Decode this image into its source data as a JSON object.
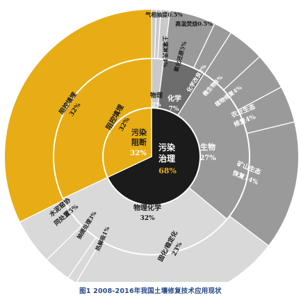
{
  "chart_data": {
    "type": "sunburst",
    "title": "",
    "caption": "图1 2008-2016年我国土壤修复技术应用现状",
    "colors": {
      "black": "#1b1b1b",
      "gold": "#e8ad14",
      "gray_dark": "#6d6d6d",
      "gray_mid": "#9a9a9a",
      "gray_light": "#c9c9c9",
      "gray_pale": "#d9d9d9"
    },
    "rings": {
      "inner": [
        {
          "name": "污染治理",
          "value": 68
        },
        {
          "name": "污染阻断",
          "value": 32
        }
      ],
      "middle": [
        {
          "name": "物理",
          "value": 2
        },
        {
          "name": "化学",
          "value": 7
        },
        {
          "name": "生物",
          "value": 27
        },
        {
          "name": "物理化学",
          "value": 32
        },
        {
          "name": "阻控填埋",
          "value": 32
        }
      ],
      "outer": [
        {
          "name": "气相抽提",
          "value": 0.5
        },
        {
          "name": "高温焚烧",
          "value": 0.5
        },
        {
          "name": "土壤淋洗",
          "value": 1
        },
        {
          "name": "氧化还原",
          "value": 5
        },
        {
          "name": "化学改良",
          "value": 2
        },
        {
          "name": "微生物",
          "value": 4
        },
        {
          "name": "植物修复",
          "value": 4
        },
        {
          "name": "农业生态修复",
          "value": 4
        },
        {
          "name": "矿山生态恢复",
          "value": 14
        },
        {
          "name": "固化/稳定化",
          "value": 23
        },
        {
          "name": "热解吸",
          "value": 1
        },
        {
          "name": "抽提处理",
          "value": 3
        },
        {
          "name": "水泥窑协同处置",
          "value": 5
        },
        {
          "name": "阻控填埋",
          "value": 32
        }
      ]
    },
    "labels": {
      "inner_treat_1": "污染",
      "inner_treat_2": "治理",
      "inner_treat_pct": "68%",
      "inner_block_1": "污染",
      "inner_block_2": "阻断",
      "inner_block_pct": "32%",
      "mid_phys": "物理",
      "mid_phys_pct": "2%",
      "mid_chem": "化学",
      "mid_chem_pct": "7%",
      "mid_bio": "生物",
      "mid_bio_pct": "27%",
      "mid_pc": "物理化学",
      "mid_pc_pct": "32%",
      "mid_fill": "阻控填埋",
      "mid_fill_pct": "32%",
      "out_svE": "气相抽提0.5%",
      "out_inc": "高温焚烧0.5%",
      "out_wash": "土壤淋洗1%",
      "out_redox": "氧化还原5%",
      "out_chem": "化学改良2%",
      "out_micro": "微生物4%",
      "out_plant": "植物修复4%",
      "out_agri_1": "农业生态",
      "out_agri_2": "修复4%",
      "out_mine_1": "矿山生态",
      "out_mine_2": "恢复14%",
      "out_solid_1": "固化/稳定化",
      "out_solid_2": "23%",
      "out_thermal": "热解吸1%",
      "out_pump": "抽提处理3%",
      "out_cement_1": "水泥窑协",
      "out_cement_2": "同处置5%",
      "out_fill_1": "阻控填埋",
      "out_fill_2": "32%"
    }
  }
}
